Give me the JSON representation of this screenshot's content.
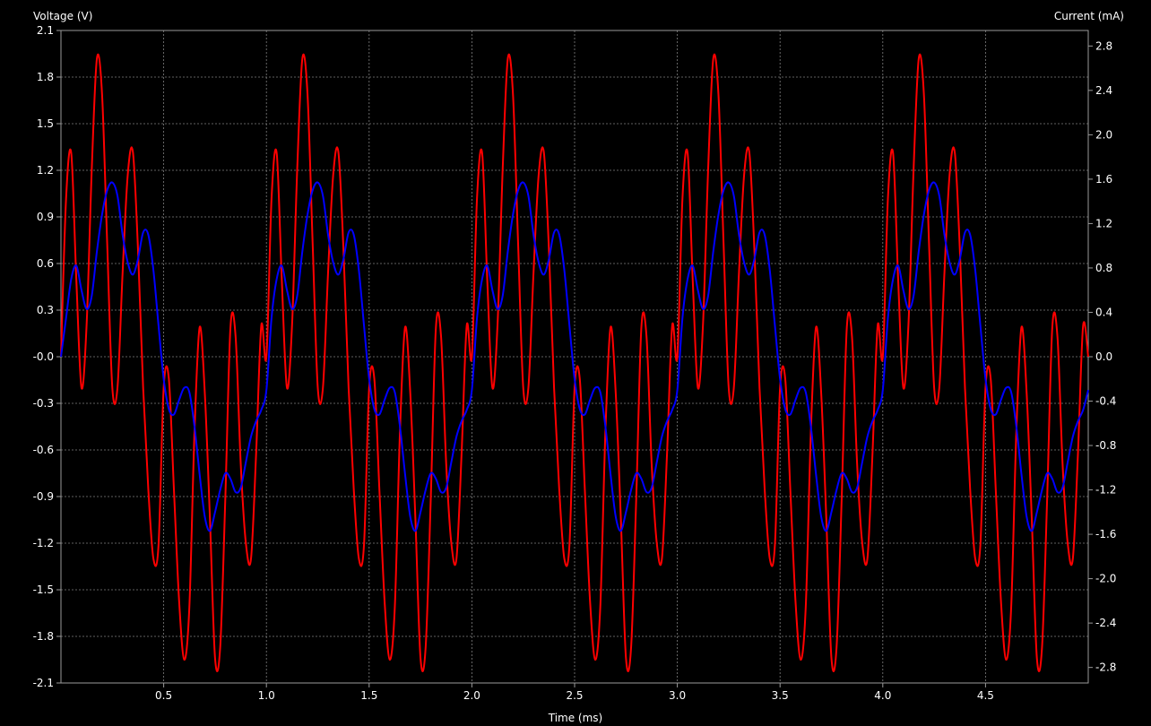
{
  "chart_data": {
    "type": "line",
    "background": "#000000",
    "grid": true,
    "grid_color": "#808080",
    "xlabel": "Time (ms)",
    "ylabel_left": "Voltage (V)",
    "ylabel_right": "Current (mA)",
    "xlim": [
      0,
      5
    ],
    "ylim_left": [
      -2.1,
      2.1
    ],
    "ylim_right": [
      -2.94,
      2.94
    ],
    "x_ticks": [
      "0.5",
      "1.0",
      "1.5",
      "2.0",
      "2.5",
      "3.0",
      "3.5",
      "4.0",
      "4.5"
    ],
    "y_left_ticks": [
      "2.1",
      "1.8",
      "1.5",
      "1.2",
      "0.9",
      "0.6",
      "0.3",
      "-0.0",
      "-0.3",
      "-0.6",
      "-0.9",
      "-1.2",
      "-1.5",
      "-1.8",
      "-2.1"
    ],
    "y_right_ticks": [
      "2.8",
      "2.4",
      "2.0",
      "1.6",
      "1.2",
      "0.8",
      "0.4",
      "0.0",
      "-0.4",
      "-0.8",
      "-1.2",
      "-1.6",
      "-2.0",
      "-2.4",
      "-2.8"
    ],
    "series": [
      {
        "axis": "left",
        "color": "#ff0000",
        "x": [
          0,
          0.025,
          0.05,
          0.075,
          0.1,
          0.125,
          0.15,
          0.175,
          0.2,
          0.225,
          0.25,
          0.275,
          0.3,
          0.325,
          0.35,
          0.375,
          0.4,
          0.425,
          0.45,
          0.475,
          0.5,
          0.525,
          0.55,
          0.575,
          0.6,
          0.625,
          0.65,
          0.675,
          0.7,
          0.725,
          0.75,
          0.775,
          0.8,
          0.825,
          0.85,
          0.875,
          0.9,
          0.925,
          0.95,
          0.975,
          1.0
        ],
        "y": [
          0.0,
          1.02,
          1.31,
          0.49,
          -0.2,
          0.21,
          1.21,
          1.92,
          1.69,
          0.73,
          -0.2,
          -0.2,
          0.54,
          1.17,
          1.32,
          0.69,
          -0.2,
          -0.85,
          -1.3,
          -1.21,
          -0.2,
          -0.14,
          -0.86,
          -1.57,
          -1.95,
          -1.61,
          -0.48,
          0.19,
          -0.23,
          -1.04,
          -1.94,
          -1.87,
          -0.91,
          0.19,
          0.13,
          -0.69,
          -1.2,
          -1.3,
          -0.62,
          0.2,
          0.0
        ]
      },
      {
        "axis": "right",
        "color": "#0000ff",
        "x": [
          0,
          0.025,
          0.05,
          0.075,
          0.1,
          0.125,
          0.15,
          0.175,
          0.2,
          0.225,
          0.25,
          0.275,
          0.3,
          0.325,
          0.35,
          0.375,
          0.4,
          0.425,
          0.45,
          0.475,
          0.5,
          0.525,
          0.55,
          0.575,
          0.6,
          0.625,
          0.65,
          0.675,
          0.7,
          0.725,
          0.75,
          0.775,
          0.8,
          0.825,
          0.85,
          0.875,
          0.9,
          0.925,
          0.95,
          0.975,
          1.0
        ],
        "y": [
          0.0,
          0.35,
          0.7,
          0.82,
          0.6,
          0.43,
          0.55,
          0.95,
          1.28,
          1.5,
          1.57,
          1.45,
          1.1,
          0.85,
          0.74,
          0.88,
          1.12,
          1.1,
          0.78,
          0.28,
          -0.2,
          -0.47,
          -0.52,
          -0.39,
          -0.28,
          -0.32,
          -0.63,
          -1.06,
          -1.44,
          -1.57,
          -1.4,
          -1.2,
          -1.05,
          -1.1,
          -1.22,
          -1.18,
          -0.95,
          -0.72,
          -0.58,
          -0.48,
          -0.3
        ]
      }
    ]
  }
}
